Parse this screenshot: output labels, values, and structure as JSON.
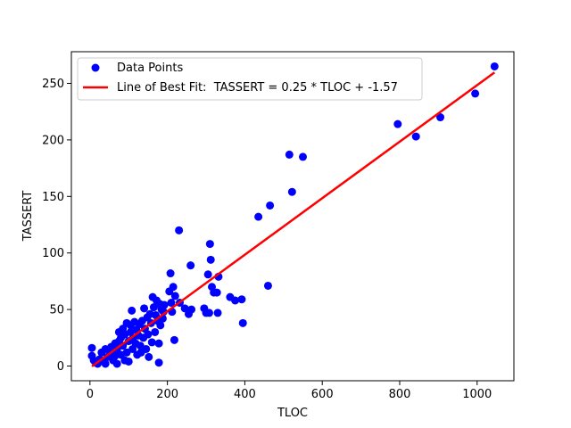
{
  "chart_data": {
    "type": "scatter",
    "xlabel": "TLOC",
    "ylabel": "TASSERT",
    "xlim": [
      -48,
      1095
    ],
    "ylim": [
      -13,
      278
    ],
    "xticks": [
      0,
      200,
      400,
      600,
      800,
      1000
    ],
    "yticks": [
      0,
      50,
      100,
      150,
      200,
      250
    ],
    "grid": false,
    "legend_position": "top-left",
    "point_color": "#0000ff",
    "line_color": "#ff0000",
    "series": [
      {
        "name": "Data Points",
        "type": "scatter",
        "points": [
          [
            5,
            16
          ],
          [
            5,
            9
          ],
          [
            10,
            5
          ],
          [
            15,
            3
          ],
          [
            20,
            2
          ],
          [
            25,
            6
          ],
          [
            30,
            12
          ],
          [
            35,
            4
          ],
          [
            40,
            15
          ],
          [
            40,
            2
          ],
          [
            45,
            8
          ],
          [
            50,
            14
          ],
          [
            55,
            10
          ],
          [
            55,
            17
          ],
          [
            60,
            12
          ],
          [
            60,
            5
          ],
          [
            65,
            20
          ],
          [
            65,
            9
          ],
          [
            70,
            2
          ],
          [
            70,
            15
          ],
          [
            75,
            30
          ],
          [
            75,
            22
          ],
          [
            80,
            25
          ],
          [
            80,
            10
          ],
          [
            85,
            18
          ],
          [
            85,
            33
          ],
          [
            90,
            5
          ],
          [
            90,
            28
          ],
          [
            95,
            38
          ],
          [
            95,
            12
          ],
          [
            100,
            22
          ],
          [
            100,
            4
          ],
          [
            105,
            36
          ],
          [
            105,
            30
          ],
          [
            108,
            49
          ],
          [
            110,
            24
          ],
          [
            110,
            15
          ],
          [
            115,
            39
          ],
          [
            118,
            20
          ],
          [
            120,
            32
          ],
          [
            122,
            10
          ],
          [
            125,
            27
          ],
          [
            128,
            37
          ],
          [
            130,
            18
          ],
          [
            132,
            12
          ],
          [
            135,
            40
          ],
          [
            138,
            25
          ],
          [
            140,
            51
          ],
          [
            142,
            33
          ],
          [
            145,
            15
          ],
          [
            148,
            43
          ],
          [
            150,
            28
          ],
          [
            152,
            8
          ],
          [
            155,
            46
          ],
          [
            158,
            38
          ],
          [
            160,
            21
          ],
          [
            162,
            61
          ],
          [
            165,
            52
          ],
          [
            168,
            30
          ],
          [
            170,
            45
          ],
          [
            172,
            58
          ],
          [
            175,
            40
          ],
          [
            178,
            3
          ],
          [
            178,
            20
          ],
          [
            180,
            55
          ],
          [
            182,
            36
          ],
          [
            185,
            50
          ],
          [
            188,
            42
          ],
          [
            190,
            48
          ],
          [
            192,
            54
          ],
          [
            205,
            66
          ],
          [
            208,
            82
          ],
          [
            210,
            56
          ],
          [
            212,
            48
          ],
          [
            215,
            70
          ],
          [
            218,
            23
          ],
          [
            220,
            62
          ],
          [
            230,
            120
          ],
          [
            232,
            56
          ],
          [
            245,
            51
          ],
          [
            255,
            46
          ],
          [
            260,
            89
          ],
          [
            262,
            50
          ],
          [
            295,
            51
          ],
          [
            300,
            47
          ],
          [
            305,
            81
          ],
          [
            308,
            47
          ],
          [
            310,
            108
          ],
          [
            312,
            94
          ],
          [
            315,
            70
          ],
          [
            320,
            65
          ],
          [
            328,
            65
          ],
          [
            332,
            79
          ],
          [
            330,
            47
          ],
          [
            362,
            61
          ],
          [
            375,
            58
          ],
          [
            392,
            59
          ],
          [
            395,
            38
          ],
          [
            435,
            132
          ],
          [
            460,
            71
          ],
          [
            465,
            142
          ],
          [
            515,
            187
          ],
          [
            522,
            154
          ],
          [
            550,
            185
          ],
          [
            795,
            214
          ],
          [
            842,
            203
          ],
          [
            905,
            220
          ],
          [
            995,
            241
          ],
          [
            1045,
            265
          ]
        ]
      },
      {
        "name": "Line of Best Fit:  TASSERT = 0.25 * TLOC + -1.57",
        "type": "line",
        "x": [
          5,
          1045
        ],
        "y": [
          -0.32,
          259.68
        ]
      }
    ]
  }
}
